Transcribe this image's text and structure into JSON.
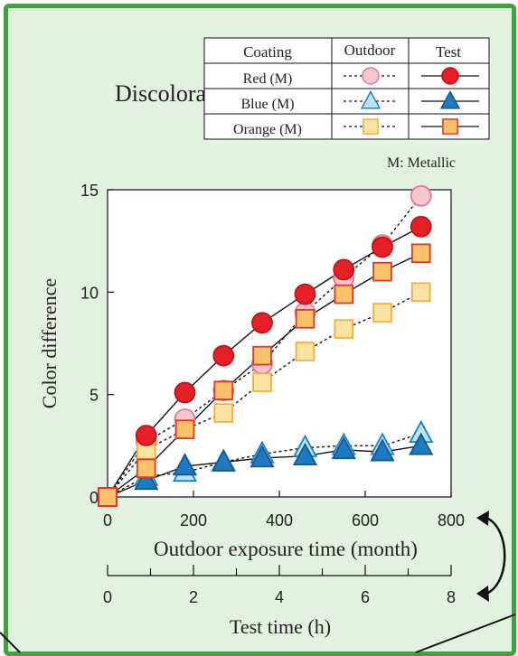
{
  "title": "Discoloration",
  "legend": {
    "headers": [
      "Coating",
      "Outdoor",
      "Test"
    ],
    "rows": [
      "Red (M)",
      "Blue (M)",
      "Orange (M)"
    ],
    "note": "M: Metallic"
  },
  "chart_data": {
    "type": "line",
    "ylabel": "Color difference",
    "xlabel": "Outdoor exposure time (month)",
    "x2label": "Test time (h)",
    "xlim": [
      0,
      800
    ],
    "ylim": [
      0,
      15
    ],
    "x2lim": [
      0,
      8
    ],
    "xticks": [
      0,
      200,
      400,
      600,
      800
    ],
    "yticks": [
      0,
      5,
      10,
      15
    ],
    "x2ticks": [
      0,
      2,
      4,
      6,
      8
    ],
    "grid": false,
    "series": [
      {
        "name": "Red (M)",
        "group": "Outdoor",
        "marker": "circle",
        "color": "#f7c6cf",
        "edge": "#e07a93",
        "dashed": true,
        "x": [
          0,
          90,
          180,
          270,
          360,
          460,
          550,
          640,
          730
        ],
        "y": [
          0,
          2.7,
          3.8,
          5.2,
          6.5,
          9.0,
          10.7,
          12.3,
          14.7
        ]
      },
      {
        "name": "Red (M)",
        "group": "Test",
        "marker": "circle",
        "color": "#e41f26",
        "edge": "#c1121a",
        "dashed": false,
        "x": [
          0,
          90,
          180,
          270,
          360,
          460,
          550,
          640,
          730
        ],
        "y": [
          0,
          3.0,
          5.1,
          6.9,
          8.5,
          9.9,
          11.1,
          12.2,
          13.2
        ]
      },
      {
        "name": "Blue (M)",
        "group": "Outdoor",
        "marker": "triangle",
        "color": "#bfe0f5",
        "edge": "#1b80c4",
        "dashed": true,
        "x": [
          0,
          90,
          180,
          270,
          360,
          460,
          550,
          640,
          730
        ],
        "y": [
          0,
          1.0,
          1.2,
          1.7,
          2.1,
          2.4,
          2.5,
          2.5,
          3.1
        ]
      },
      {
        "name": "Blue (M)",
        "group": "Test",
        "marker": "triangle",
        "color": "#1f78c0",
        "edge": "#105a94",
        "dashed": false,
        "x": [
          0,
          90,
          180,
          270,
          360,
          460,
          550,
          640,
          730
        ],
        "y": [
          0,
          0.8,
          1.5,
          1.7,
          1.9,
          2.0,
          2.3,
          2.2,
          2.5
        ]
      },
      {
        "name": "Orange (M)",
        "group": "Outdoor",
        "marker": "square",
        "color": "#fde3a4",
        "edge": "#f0b040",
        "dashed": true,
        "x": [
          0,
          90,
          180,
          270,
          360,
          460,
          550,
          640,
          730
        ],
        "y": [
          0,
          2.3,
          3.3,
          4.1,
          5.6,
          7.1,
          8.2,
          9.0,
          10.0
        ]
      },
      {
        "name": "Orange (M)",
        "group": "Test",
        "marker": "square",
        "color": "#fbc46a",
        "edge": "#e2362a",
        "dashed": false,
        "x": [
          0,
          90,
          180,
          270,
          360,
          460,
          550,
          640,
          730
        ],
        "y": [
          0,
          1.4,
          3.3,
          5.2,
          6.9,
          8.7,
          9.9,
          11.0,
          11.9
        ]
      }
    ]
  }
}
